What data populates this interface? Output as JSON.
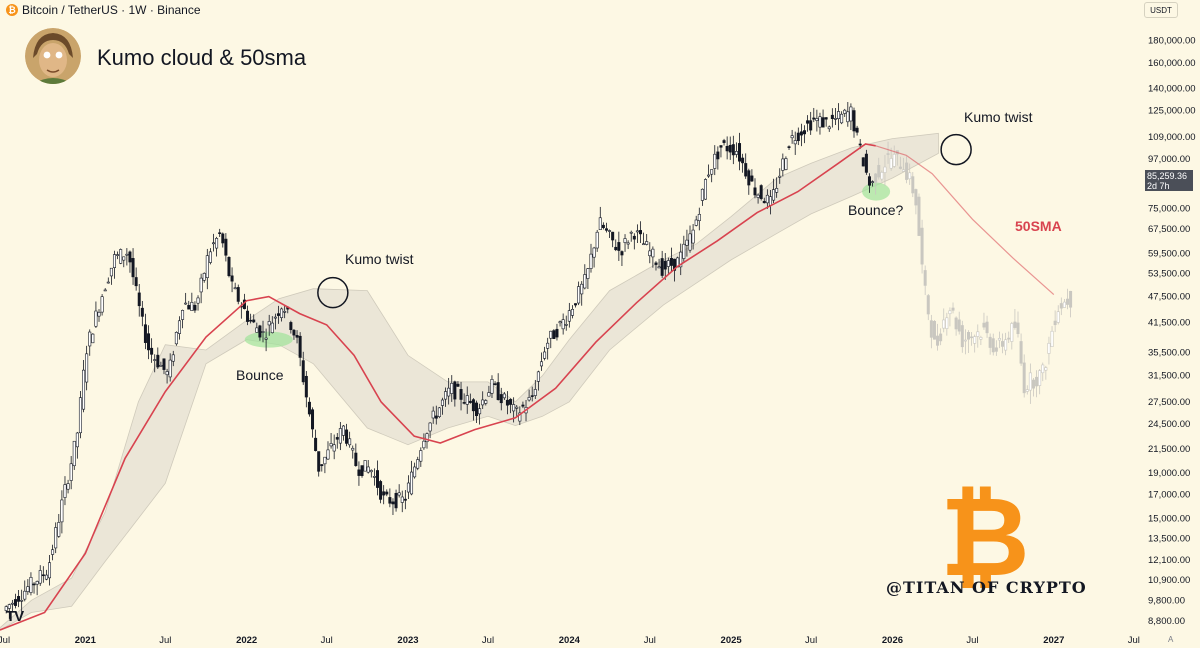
{
  "header": {
    "symbol": "Bitcoin / TetherUS · 1W · Binance",
    "coin_glyph": "₿",
    "title": "Kumo cloud & 50sma",
    "currency": "USDT",
    "current_price": "85,259.36",
    "countdown": "2d 7h",
    "auto_label": "A",
    "tv_logo": "TV"
  },
  "colors": {
    "background": "#fdf8e4",
    "sma": "#d8434f",
    "cloud": "#e4e0d3",
    "candle": "#131722",
    "projection": "#c9c7c0",
    "highlight": "#9fe39a",
    "brand": "#f7931a"
  },
  "annotations": {
    "kumo_twist_1": "Kumo twist",
    "kumo_twist_2": "Kumo twist",
    "bounce": "Bounce",
    "bounce_q": "Bounce?",
    "sma_label": "50SMA"
  },
  "brand": {
    "logo_glyph": "₿",
    "handle": "@TITAN OF CRYPTO"
  },
  "chart_data": {
    "type": "candlestick",
    "title": "Kumo cloud & 50sma",
    "x_ticks": [
      "Jul",
      "2021",
      "Jul",
      "2022",
      "Jul",
      "2023",
      "Jul",
      "2024",
      "Jul",
      "2025",
      "Jul",
      "2026",
      "Jul",
      "2027",
      "Jul"
    ],
    "y_ticks": [
      8800,
      9800,
      10900,
      12100,
      13500,
      15000,
      17000,
      19000,
      21500,
      24500,
      27500,
      31500,
      35500,
      41500,
      47500,
      53500,
      59500,
      67500,
      75000,
      97000,
      109000,
      125000,
      140000,
      160000,
      180000
    ],
    "y_scale": "log",
    "y_range": [
      8400,
      200000
    ],
    "x_range": [
      "2020-06-22",
      "2027-07-15"
    ],
    "current_price": 85259.36,
    "price_path": [
      [
        "2020-07-01",
        9200
      ],
      [
        "2020-09-01",
        10500
      ],
      [
        "2020-10-15",
        11500
      ],
      [
        "2020-11-15",
        16000
      ],
      [
        "2020-12-20",
        23000
      ],
      [
        "2021-01-10",
        36000
      ],
      [
        "2021-02-20",
        50000
      ],
      [
        "2021-03-15",
        58000
      ],
      [
        "2021-04-15",
        60000
      ],
      [
        "2021-05-15",
        42000
      ],
      [
        "2021-06-01",
        36000
      ],
      [
        "2021-07-15",
        31500
      ],
      [
        "2021-08-15",
        46000
      ],
      [
        "2021-09-15",
        45000
      ],
      [
        "2021-10-15",
        60000
      ],
      [
        "2021-11-10",
        66000
      ],
      [
        "2021-12-05",
        50000
      ],
      [
        "2022-01-15",
        42000
      ],
      [
        "2022-02-15",
        39000
      ],
      [
        "2022-03-31",
        46000
      ],
      [
        "2022-05-01",
        38000
      ],
      [
        "2022-05-20",
        29500
      ],
      [
        "2022-06-20",
        19500
      ],
      [
        "2022-08-15",
        24000
      ],
      [
        "2022-09-15",
        19500
      ],
      [
        "2022-10-15",
        19500
      ],
      [
        "2022-11-15",
        16500
      ],
      [
        "2022-12-31",
        16500
      ],
      [
        "2023-02-15",
        23500
      ],
      [
        "2023-04-15",
        29500
      ],
      [
        "2023-06-15",
        26500
      ],
      [
        "2023-07-15",
        30000
      ],
      [
        "2023-09-10",
        25800
      ],
      [
        "2023-10-15",
        28000
      ],
      [
        "2023-11-15",
        37000
      ],
      [
        "2023-12-31",
        42500
      ],
      [
        "2024-02-15",
        52000
      ],
      [
        "2024-03-15",
        70000
      ],
      [
        "2024-05-01",
        60000
      ],
      [
        "2024-06-01",
        67000
      ],
      [
        "2024-08-05",
        55000
      ],
      [
        "2024-09-10",
        57000
      ],
      [
        "2024-10-15",
        67000
      ],
      [
        "2024-11-15",
        90000
      ],
      [
        "2024-12-17",
        104000
      ],
      [
        "2025-01-20",
        102000
      ],
      [
        "2025-03-01",
        83000
      ],
      [
        "2025-04-08",
        77000
      ],
      [
        "2025-05-20",
        107000
      ],
      [
        "2025-07-14",
        119000
      ],
      [
        "2025-08-15",
        117000
      ],
      [
        "2025-10-06",
        124000
      ],
      [
        "2025-10-20",
        108000
      ],
      [
        "2025-11-17",
        85259
      ]
    ],
    "projection_path": [
      [
        "2025-11-24",
        88000
      ],
      [
        "2026-01-01",
        98000
      ],
      [
        "2026-02-01",
        95000
      ],
      [
        "2026-03-01",
        80000
      ],
      [
        "2026-03-20",
        50000
      ],
      [
        "2026-04-15",
        36000
      ],
      [
        "2026-05-15",
        46000
      ],
      [
        "2026-06-15",
        38000
      ],
      [
        "2026-08-01",
        40000
      ],
      [
        "2026-09-01",
        36000
      ],
      [
        "2026-10-15",
        41000
      ],
      [
        "2026-11-01",
        30000
      ],
      [
        "2026-12-15",
        32000
      ],
      [
        "2027-01-15",
        45000
      ],
      [
        "2027-02-10",
        47000
      ]
    ],
    "sma50_path": [
      [
        "2020-06-22",
        8400
      ],
      [
        "2020-10-01",
        9200
      ],
      [
        "2021-01-01",
        12500
      ],
      [
        "2021-04-01",
        20500
      ],
      [
        "2021-07-01",
        29000
      ],
      [
        "2021-10-01",
        38500
      ],
      [
        "2022-01-01",
        46500
      ],
      [
        "2022-02-20",
        47500
      ],
      [
        "2022-05-01",
        43500
      ],
      [
        "2022-07-01",
        41000
      ],
      [
        "2022-09-01",
        35000
      ],
      [
        "2022-11-01",
        27500
      ],
      [
        "2023-01-15",
        23000
      ],
      [
        "2023-03-15",
        22200
      ],
      [
        "2023-06-01",
        23800
      ],
      [
        "2023-09-01",
        25300
      ],
      [
        "2023-12-01",
        29500
      ],
      [
        "2024-03-01",
        37500
      ],
      [
        "2024-06-01",
        46000
      ],
      [
        "2024-09-01",
        55500
      ],
      [
        "2024-12-01",
        63500
      ],
      [
        "2025-03-01",
        73500
      ],
      [
        "2025-06-01",
        82000
      ],
      [
        "2025-09-01",
        95000
      ],
      [
        "2025-11-01",
        105000
      ],
      [
        "2025-11-24",
        104000
      ],
      [
        "2026-02-01",
        99000
      ],
      [
        "2026-04-01",
        90000
      ],
      [
        "2026-07-01",
        71000
      ],
      [
        "2026-10-01",
        58000
      ],
      [
        "2027-01-01",
        48000
      ]
    ],
    "cloud_upper": [
      [
        "2020-06-22",
        8500
      ],
      [
        "2020-09-01",
        9800
      ],
      [
        "2020-12-01",
        11000
      ],
      [
        "2021-02-15",
        15500
      ],
      [
        "2021-05-01",
        27500
      ],
      [
        "2021-07-01",
        37000
      ],
      [
        "2021-10-01",
        36000
      ],
      [
        "2022-01-01",
        42000
      ],
      [
        "2022-03-15",
        47000
      ],
      [
        "2022-06-01",
        49500
      ],
      [
        "2022-10-01",
        49000
      ],
      [
        "2023-01-01",
        35000
      ],
      [
        "2023-04-01",
        30500
      ],
      [
        "2023-07-01",
        30500
      ],
      [
        "2023-09-01",
        27500
      ],
      [
        "2023-11-01",
        31500
      ],
      [
        "2024-01-01",
        38000
      ],
      [
        "2024-04-01",
        49000
      ],
      [
        "2024-08-01",
        57500
      ],
      [
        "2024-10-15",
        62500
      ],
      [
        "2025-01-01",
        72000
      ],
      [
        "2025-04-15",
        88000
      ],
      [
        "2025-07-01",
        95000
      ],
      [
        "2025-10-01",
        103000
      ],
      [
        "2026-01-01",
        108000
      ],
      [
        "2026-04-15",
        111000
      ]
    ],
    "cloud_lower": [
      [
        "2020-06-22",
        8400
      ],
      [
        "2020-09-01",
        9200
      ],
      [
        "2020-12-01",
        9500
      ],
      [
        "2021-02-15",
        12000
      ],
      [
        "2021-05-01",
        15000
      ],
      [
        "2021-07-01",
        18000
      ],
      [
        "2021-10-01",
        33500
      ],
      [
        "2022-01-01",
        38000
      ],
      [
        "2022-03-15",
        37000
      ],
      [
        "2022-06-01",
        33500
      ],
      [
        "2022-10-01",
        24000
      ],
      [
        "2023-01-01",
        22000
      ],
      [
        "2023-04-01",
        24000
      ],
      [
        "2023-07-01",
        25500
      ],
      [
        "2023-09-01",
        24300
      ],
      [
        "2023-11-01",
        25500
      ],
      [
        "2024-01-01",
        27500
      ],
      [
        "2024-04-01",
        36000
      ],
      [
        "2024-08-01",
        45500
      ],
      [
        "2024-10-15",
        51000
      ],
      [
        "2025-01-01",
        57500
      ],
      [
        "2025-04-15",
        66000
      ],
      [
        "2025-07-01",
        73000
      ],
      [
        "2025-10-01",
        80000
      ],
      [
        "2026-01-01",
        88000
      ],
      [
        "2026-04-15",
        100000
      ]
    ],
    "annotations": [
      {
        "text": "Kumo twist",
        "date": "2022-07-20",
        "price": 48500
      },
      {
        "text": "Kumo twist",
        "date": "2026-06-01",
        "price": 102000
      },
      {
        "text": "Bounce",
        "date": "2022-03-01",
        "price": 37500
      },
      {
        "text": "Bounce?",
        "date": "2025-11-20",
        "price": 82000
      },
      {
        "text": "50SMA",
        "date": "2026-10-01",
        "price": 65000
      }
    ]
  }
}
